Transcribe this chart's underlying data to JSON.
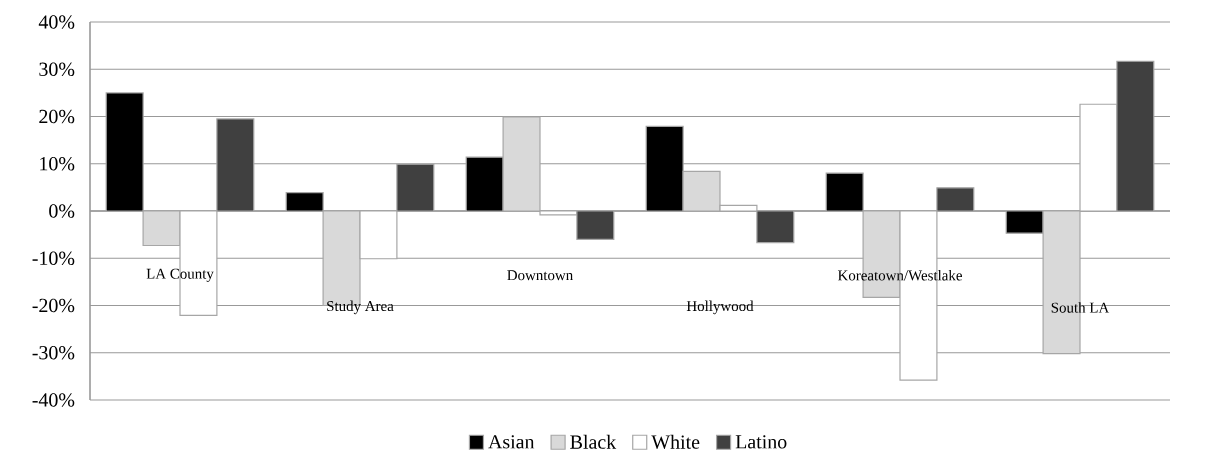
{
  "chart_data": {
    "type": "bar",
    "categories": [
      "LA County",
      "Study Area",
      "Downtown",
      "Hollywood",
      "Koreatown/Westlake",
      "South LA"
    ],
    "series": [
      {
        "name": "Asian",
        "color": "#000000",
        "values": [
          25,
          3.9,
          11.4,
          17.9,
          8,
          -4.7
        ]
      },
      {
        "name": "Black",
        "color": "#d9d9d9",
        "values": [
          -7.3,
          -20,
          19.9,
          8.4,
          -18.3,
          -30.2
        ]
      },
      {
        "name": "White",
        "color": "#ffffff",
        "values": [
          -22.1,
          -10.1,
          -0.8,
          1.2,
          -35.8,
          22.6
        ]
      },
      {
        "name": "Latino",
        "color": "#404040",
        "values": [
          19.5,
          9.9,
          -6,
          -6.7,
          4.9,
          31.7
        ]
      }
    ],
    "ylim": [
      -40,
      40
    ],
    "yticks": [
      {
        "value": -40,
        "label": "-40%"
      },
      {
        "value": -30,
        "label": "-30%"
      },
      {
        "value": -20,
        "label": "-20%"
      },
      {
        "value": -10,
        "label": "-10%"
      },
      {
        "value": 0,
        "label": "0%"
      },
      {
        "value": 10,
        "label": "10%"
      },
      {
        "value": 20,
        "label": "20%"
      },
      {
        "value": 30,
        "label": "30%"
      },
      {
        "value": 40,
        "label": "40%"
      }
    ],
    "grid": "y",
    "legend": "bottom"
  }
}
